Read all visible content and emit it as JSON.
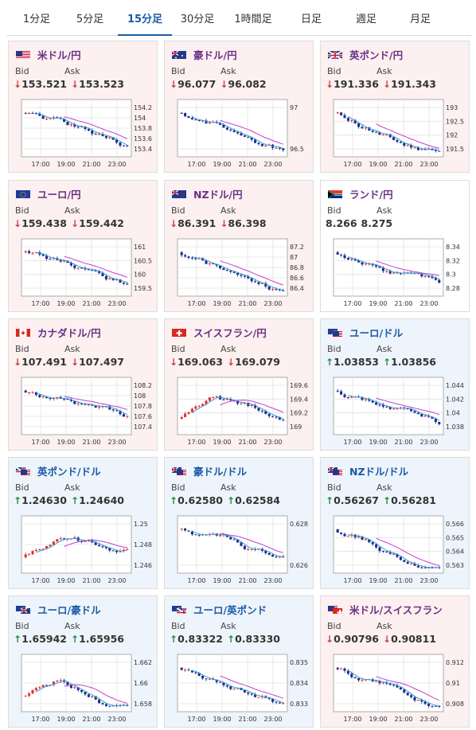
{
  "tabs": [
    "1分足",
    "5分足",
    "15分足",
    "30分足",
    "1時間足",
    "日足",
    "週足",
    "月足"
  ],
  "active_tab": 2,
  "labels": {
    "bid": "Bid",
    "ask": "Ask"
  },
  "colors": {
    "candle_up": "#e03030",
    "candle_down": "#1b2d8a",
    "ma_short": "#3aa0d8",
    "ma_long": "#c040d0",
    "title_purple": "#6b2f86",
    "title_blue": "#1a5aa8"
  },
  "cards": [
    {
      "title": "米ドル/円",
      "flag": "us",
      "theme": "pink",
      "dir": "down",
      "dir_symbol": "↓",
      "bid": "153.521",
      "ask": "153.523",
      "chart": {
        "y_ticks": [
          "154.2",
          "154",
          "153.8",
          "153.6",
          "153.4"
        ],
        "x_ticks": [
          "17:00",
          "19:00",
          "21:00",
          "23:00"
        ],
        "trend": "down"
      }
    },
    {
      "title": "豪ドル/円",
      "flag": "au",
      "theme": "pink",
      "dir": "down",
      "dir_symbol": "↓",
      "bid": "96.077",
      "ask": "96.082",
      "chart": {
        "y_ticks": [
          "97",
          "96.5"
        ],
        "x_ticks": [
          "17:00",
          "19:00",
          "21:00",
          "23:00"
        ],
        "trend": "down"
      }
    },
    {
      "title": "英ポンド/円",
      "flag": "gb",
      "theme": "pink",
      "dir": "down",
      "dir_symbol": "↓",
      "bid": "191.336",
      "ask": "191.343",
      "chart": {
        "y_ticks": [
          "193",
          "192.5",
          "192",
          "191.5"
        ],
        "x_ticks": [
          "17:00",
          "19:00",
          "21:00",
          "23:00"
        ],
        "trend": "down"
      }
    },
    {
      "title": "ユーロ/円",
      "flag": "eu",
      "theme": "pink",
      "dir": "down",
      "dir_symbol": "↓",
      "bid": "159.438",
      "ask": "159.442",
      "chart": {
        "y_ticks": [
          "161",
          "160.5",
          "160",
          "159.5"
        ],
        "x_ticks": [
          "17:00",
          "19:00",
          "21:00",
          "23:00"
        ],
        "trend": "down"
      }
    },
    {
      "title": "NZドル/円",
      "flag": "nz",
      "theme": "pink",
      "dir": "down",
      "dir_symbol": "↓",
      "bid": "86.391",
      "ask": "86.398",
      "chart": {
        "y_ticks": [
          "87.2",
          "87",
          "86.8",
          "86.6",
          "86.4"
        ],
        "x_ticks": [
          "17:00",
          "19:00",
          "21:00",
          "23:00"
        ],
        "trend": "down"
      }
    },
    {
      "title": "ランド/円",
      "flag": "za",
      "theme": "white",
      "dir": "none",
      "dir_symbol": "",
      "bid": "8.266",
      "ask": "8.275",
      "chart": {
        "y_ticks": [
          "8.34",
          "8.32",
          "8.3",
          "8.28"
        ],
        "x_ticks": [
          "17:00",
          "19:00",
          "21:00",
          "23:00"
        ],
        "trend": "down"
      }
    },
    {
      "title": "カナダドル/円",
      "flag": "ca",
      "theme": "pink",
      "dir": "down",
      "dir_symbol": "↓",
      "bid": "107.491",
      "ask": "107.497",
      "chart": {
        "y_ticks": [
          "108.2",
          "108",
          "107.8",
          "107.6",
          "107.4"
        ],
        "x_ticks": [
          "17:00",
          "19:00",
          "21:00",
          "23:00"
        ],
        "trend": "down"
      }
    },
    {
      "title": "スイスフラン/円",
      "flag": "ch",
      "theme": "pink",
      "dir": "down",
      "dir_symbol": "↓",
      "bid": "169.063",
      "ask": "169.079",
      "chart": {
        "y_ticks": [
          "169.6",
          "169.4",
          "169.2",
          "169"
        ],
        "x_ticks": [
          "17:00",
          "19:00",
          "21:00",
          "23:00"
        ],
        "trend": "up_then_down"
      }
    },
    {
      "title": "ユーロ/ドル",
      "flag": "eu-us",
      "theme": "blue",
      "dir": "up",
      "dir_symbol": "↑",
      "bid": "1.03853",
      "ask": "1.03856",
      "chart": {
        "y_ticks": [
          "1.044",
          "1.042",
          "1.04",
          "1.038"
        ],
        "x_ticks": [
          "17:00",
          "19:00",
          "21:00",
          "23:00"
        ],
        "trend": "down"
      }
    },
    {
      "title": "英ポンド/ドル",
      "flag": "gb-us",
      "theme": "blue",
      "dir": "up",
      "dir_symbol": "↑",
      "bid": "1.24630",
      "ask": "1.24640",
      "chart": {
        "y_ticks": [
          "1.25",
          "1.248",
          "1.246"
        ],
        "x_ticks": [
          "17:00",
          "19:00",
          "21:00",
          "23:00"
        ],
        "trend": "up_then_down"
      }
    },
    {
      "title": "豪ドル/ドル",
      "flag": "au-us",
      "theme": "blue",
      "dir": "up",
      "dir_symbol": "↑",
      "bid": "0.62580",
      "ask": "0.62584",
      "chart": {
        "y_ticks": [
          "0.628",
          "0.626"
        ],
        "x_ticks": [
          "17:00",
          "19:00",
          "21:00",
          "23:00"
        ],
        "trend": "down"
      }
    },
    {
      "title": "NZドル/ドル",
      "flag": "nz-us",
      "theme": "blue",
      "dir": "up",
      "dir_symbol": "↑",
      "bid": "0.56267",
      "ask": "0.56281",
      "chart": {
        "y_ticks": [
          "0.566",
          "0.565",
          "0.564",
          "0.563"
        ],
        "x_ticks": [
          "17:00",
          "19:00",
          "21:00",
          "23:00"
        ],
        "trend": "down"
      }
    },
    {
      "title": "ユーロ/豪ドル",
      "flag": "eu-au",
      "theme": "blue",
      "dir": "up",
      "dir_symbol": "↑",
      "bid": "1.65942",
      "ask": "1.65956",
      "chart": {
        "y_ticks": [
          "1.662",
          "1.66",
          "1.658"
        ],
        "x_ticks": [
          "17:00",
          "19:00",
          "21:00",
          "23:00"
        ],
        "trend": "up_then_down"
      }
    },
    {
      "title": "ユーロ/英ポンド",
      "flag": "eu-gb",
      "theme": "blue",
      "dir": "up",
      "dir_symbol": "↑",
      "bid": "0.83322",
      "ask": "0.83330",
      "chart": {
        "y_ticks": [
          "0.835",
          "0.834",
          "0.833"
        ],
        "x_ticks": [
          "17:00",
          "19:00",
          "21:00",
          "23:00"
        ],
        "trend": "down"
      }
    },
    {
      "title": "米ドル/スイスフラン",
      "flag": "us-ch",
      "theme": "pink",
      "dir": "down",
      "dir_symbol": "↓",
      "bid": "0.90796",
      "ask": "0.90811",
      "chart": {
        "y_ticks": [
          "0.912",
          "0.91",
          "0.908"
        ],
        "x_ticks": [
          "17:00",
          "19:00",
          "21:00",
          "23:00"
        ],
        "trend": "down"
      }
    }
  ]
}
